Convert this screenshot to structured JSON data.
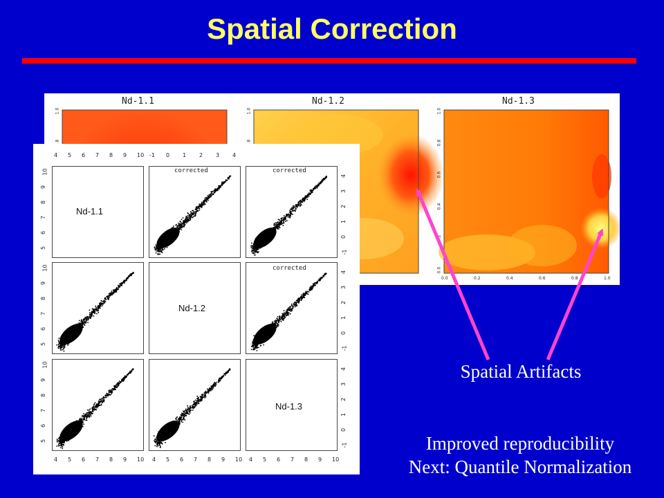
{
  "slide": {
    "title": "Spatial Correction",
    "colors": {
      "background": "#0000cc",
      "title": "#ffff66",
      "rule": "#ff0000",
      "arrow": "#ff44cc"
    }
  },
  "heatmaps": {
    "panels": [
      {
        "title": "Nd-1.1"
      },
      {
        "title": "Nd-1.2"
      },
      {
        "title": "Nd-1.3"
      }
    ],
    "x_ticks": [
      "0.0",
      "0.2",
      "0.4",
      "0.6",
      "0.8",
      "1.0"
    ],
    "y_ticks": [
      "0.0",
      "0.2",
      "0.4",
      "0.6",
      "0.8",
      "1.0"
    ]
  },
  "scatter_matrix": {
    "labels": [
      "Nd-1.1",
      "Nd-1.2",
      "Nd-1.3"
    ],
    "annotation": "corrected",
    "x_ticks_top": [
      "4",
      "5",
      "6",
      "7",
      "8",
      "9",
      "10"
    ],
    "x_ticks_top_mid": [
      "-1",
      "0",
      "1",
      "2",
      "3",
      "4"
    ],
    "x_ticks_bottom": [
      "4",
      "5",
      "6",
      "7",
      "8",
      "9",
      "10"
    ],
    "y_ticks_left": [
      "10",
      "9",
      "8",
      "7",
      "6",
      "5"
    ],
    "y_ticks_right": [
      "4",
      "3",
      "2",
      "1",
      "0",
      "-1"
    ]
  },
  "annotations": {
    "spatial_artifacts": "Spatial Artifacts",
    "conclusion_line1": "Improved reproducibility",
    "conclusion_line2": "Next: Quantile Normalization"
  }
}
